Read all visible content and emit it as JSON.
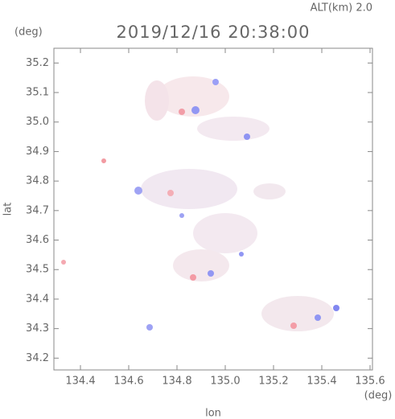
{
  "chart_data": {
    "type": "radar-image",
    "header": "ALT(km) 2.0",
    "title": "2019/12/16 20:38:00",
    "ylabel": "lat",
    "yunit": "(deg)",
    "xlabel": "lon",
    "xunit": "(deg)",
    "xlim": [
      134.29,
      135.61
    ],
    "xticks": [
      134.4,
      134.6,
      134.8,
      {
        "value": 135.0,
        "label": "135.0"
      },
      135.2,
      135.4,
      135.6
    ],
    "ylim": [
      34.16,
      35.25
    ],
    "yticks": [
      34.2,
      34.3,
      34.4,
      34.5,
      34.6,
      34.7,
      34.8,
      34.9,
      {
        "value": 35.0,
        "label": "35.0"
      },
      35.1,
      35.2
    ]
  }
}
